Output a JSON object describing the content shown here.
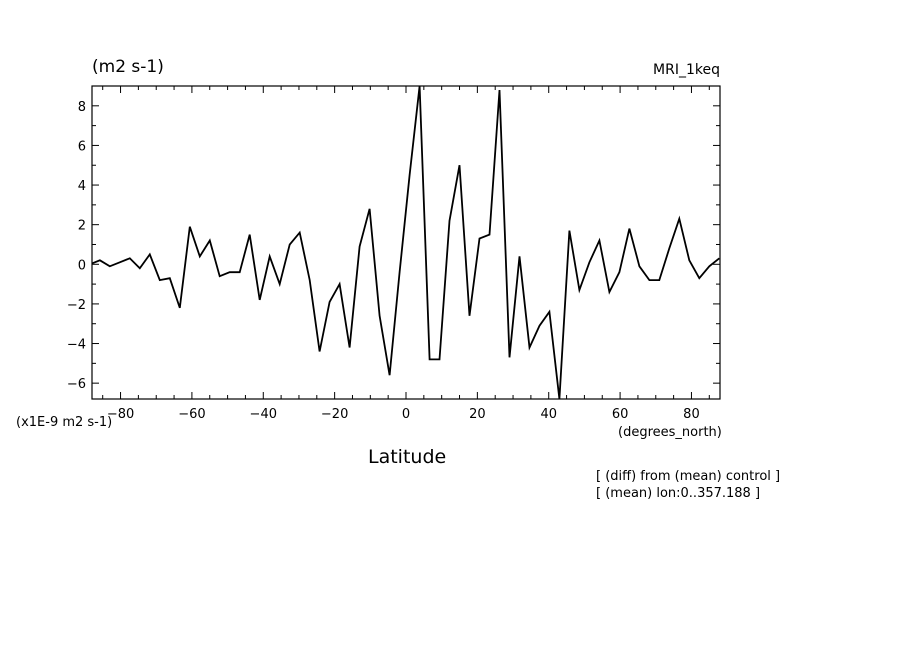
{
  "header": {
    "units": "(m2 s-1)",
    "model": "MRI_1keq"
  },
  "axes": {
    "y_scale_label": "(x1E-9 m2 s-1)",
    "x_units": "(degrees_north)",
    "x_label": "Latitude"
  },
  "notes": {
    "line1": "[ (diff) from (mean) control ]",
    "line2": "[ (mean) lon:0..357.188 ]"
  },
  "chart_data": {
    "type": "line",
    "xlabel": "Latitude",
    "ylabel": "(m2 s-1)",
    "xlim": [
      -88,
      88
    ],
    "ylim": [
      -6.8,
      9.0
    ],
    "xticks": [
      -80,
      -60,
      -40,
      -20,
      0,
      20,
      40,
      60,
      80
    ],
    "yticks": [
      -6,
      -4,
      -2,
      0,
      2,
      4,
      6,
      8
    ],
    "grid": false,
    "series": [
      {
        "color": "#000000",
        "x": [
          -88.6,
          -85.8,
          -83.0,
          -80.2,
          -77.4,
          -74.6,
          -71.8,
          -69.0,
          -66.2,
          -63.4,
          -60.6,
          -57.8,
          -55.0,
          -52.2,
          -49.4,
          -46.6,
          -43.8,
          -41.0,
          -38.2,
          -35.4,
          -32.6,
          -29.8,
          -27.0,
          -24.2,
          -21.4,
          -18.6,
          -15.8,
          -13.0,
          -10.2,
          -7.4,
          -4.6,
          -1.8,
          1.0,
          3.8,
          6.6,
          9.4,
          12.2,
          15.0,
          17.8,
          20.6,
          23.4,
          26.2,
          29.0,
          31.8,
          34.6,
          37.4,
          40.2,
          43.0,
          45.8,
          48.6,
          51.4,
          54.2,
          57.0,
          59.8,
          62.6,
          65.4,
          68.2,
          71.0,
          73.8,
          76.6,
          79.4,
          82.2,
          85.0,
          87.8
        ],
        "values": [
          0.0,
          0.2,
          -0.1,
          0.1,
          0.3,
          -0.2,
          0.5,
          -0.8,
          -0.7,
          -2.2,
          1.9,
          0.4,
          1.2,
          -0.6,
          -0.4,
          -0.4,
          1.5,
          -1.8,
          0.4,
          -1.0,
          1.0,
          1.6,
          -0.8,
          -4.4,
          -1.9,
          -1.0,
          -4.2,
          0.9,
          2.8,
          -2.6,
          -5.6,
          -0.4,
          4.5,
          9.0,
          -4.8,
          -4.8,
          2.2,
          5.0,
          -2.6,
          1.3,
          1.5,
          8.8,
          -4.7,
          0.4,
          -4.2,
          -3.1,
          -2.4,
          -6.8,
          1.7,
          -1.3,
          0.1,
          1.2,
          -1.4,
          -0.4,
          1.8,
          -0.1,
          -0.8,
          -0.8,
          0.8,
          2.3,
          0.2,
          -0.7,
          -0.1,
          0.3
        ]
      }
    ]
  }
}
